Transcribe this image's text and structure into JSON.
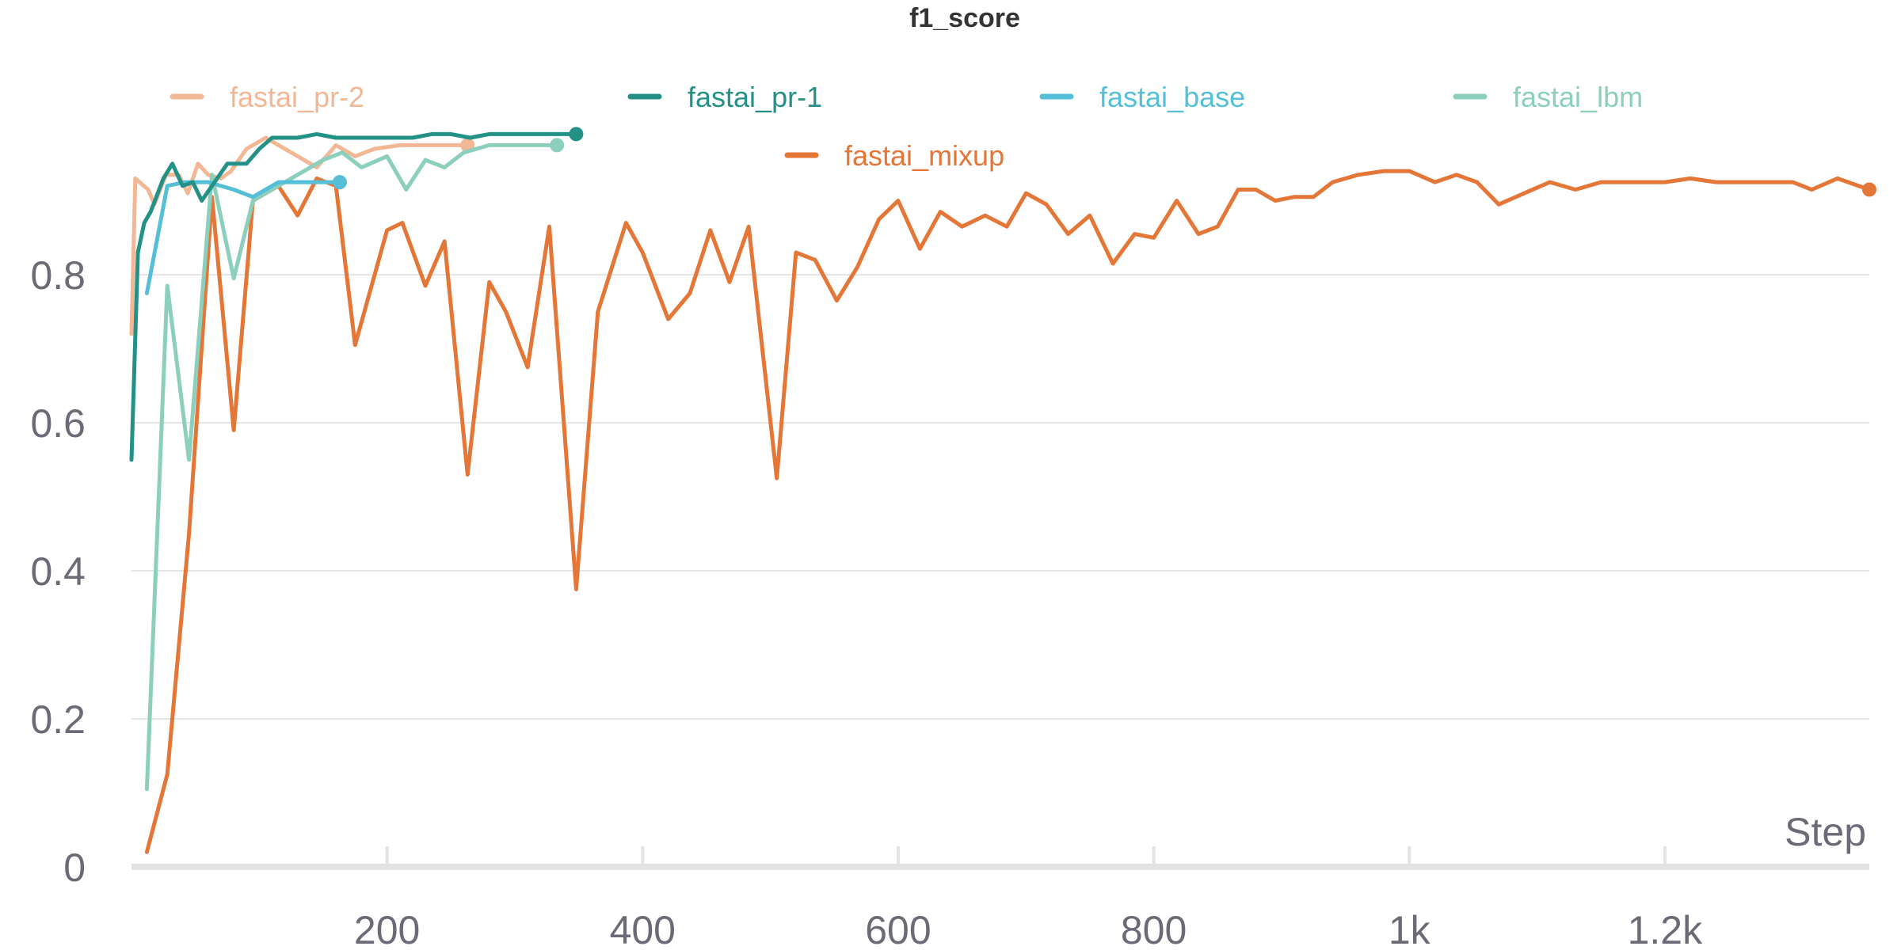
{
  "chart_data": {
    "type": "line",
    "title": "f1_score",
    "xlabel": "Step",
    "ylabel": "",
    "xlim": [
      0,
      1360
    ],
    "ylim": [
      0,
      1.0
    ],
    "xticks": [
      200,
      400,
      600,
      800,
      1000,
      1200
    ],
    "xtick_labels": [
      "200",
      "400",
      "600",
      "800",
      "1k",
      "1.2k"
    ],
    "yticks": [
      0,
      0.2,
      0.4,
      0.6,
      0.8
    ],
    "ytick_labels": [
      "0",
      "0.2",
      "0.4",
      "0.6",
      "0.8"
    ],
    "grid": true,
    "legend_position": "top",
    "series": [
      {
        "name": "fastai_pr-2",
        "color": "#f2b896",
        "x": [
          0,
          3,
          13,
          18,
          27,
          37,
          44,
          52,
          60,
          70,
          78,
          90,
          105,
          125,
          145,
          160,
          175,
          190,
          210,
          230,
          250,
          263
        ],
        "y": [
          0.72,
          0.93,
          0.915,
          0.895,
          0.935,
          0.935,
          0.91,
          0.95,
          0.935,
          0.93,
          0.94,
          0.97,
          0.985,
          0.965,
          0.945,
          0.975,
          0.96,
          0.97,
          0.975,
          0.975,
          0.975,
          0.975
        ]
      },
      {
        "name": "fastai_pr-1",
        "color": "#239186",
        "x": [
          0,
          5,
          10,
          15,
          25,
          32,
          40,
          48,
          55,
          65,
          75,
          90,
          100,
          110,
          130,
          145,
          160,
          190,
          220,
          235,
          250,
          265,
          280,
          300,
          320,
          348
        ],
        "y": [
          0.55,
          0.83,
          0.87,
          0.885,
          0.93,
          0.95,
          0.92,
          0.925,
          0.9,
          0.925,
          0.95,
          0.95,
          0.97,
          0.985,
          0.985,
          0.99,
          0.985,
          0.985,
          0.985,
          0.99,
          0.99,
          0.985,
          0.99,
          0.99,
          0.99,
          0.99
        ]
      },
      {
        "name": "fastai_base",
        "color": "#55bfd8",
        "x": [
          12,
          28,
          42,
          60,
          80,
          95,
          115,
          140,
          163
        ],
        "y": [
          0.775,
          0.92,
          0.925,
          0.925,
          0.915,
          0.905,
          0.925,
          0.925,
          0.925
        ]
      },
      {
        "name": "fastai_lbm",
        "color": "#8ccfbd",
        "x": [
          12,
          28,
          45,
          63,
          80,
          95,
          115,
          135,
          150,
          165,
          180,
          200,
          215,
          230,
          245,
          260,
          280,
          300,
          333
        ],
        "y": [
          0.105,
          0.785,
          0.55,
          0.935,
          0.795,
          0.9,
          0.92,
          0.94,
          0.955,
          0.965,
          0.945,
          0.96,
          0.915,
          0.955,
          0.945,
          0.965,
          0.975,
          0.975,
          0.975
        ]
      },
      {
        "name": "fastai_mixup",
        "color": "#e47637",
        "x": [
          12,
          28,
          45,
          63,
          80,
          95,
          115,
          130,
          145,
          160,
          175,
          200,
          212,
          230,
          245,
          263,
          280,
          293,
          310,
          327,
          348,
          365,
          387,
          400,
          420,
          437,
          453,
          468,
          483,
          505,
          520,
          535,
          552,
          568,
          585,
          600,
          617,
          633,
          650,
          668,
          685,
          700,
          716,
          733,
          750,
          768,
          785,
          800,
          818,
          835,
          850,
          866,
          880,
          895,
          910,
          925,
          940,
          960,
          980,
          1000,
          1020,
          1037,
          1053,
          1070,
          1090,
          1110,
          1130,
          1150,
          1170,
          1200,
          1220,
          1240,
          1260,
          1285,
          1300,
          1315,
          1335,
          1360
        ],
        "y": [
          0.02,
          0.125,
          0.45,
          0.905,
          0.59,
          0.9,
          0.92,
          0.88,
          0.93,
          0.92,
          0.705,
          0.86,
          0.87,
          0.785,
          0.845,
          0.53,
          0.79,
          0.75,
          0.675,
          0.865,
          0.375,
          0.75,
          0.87,
          0.83,
          0.74,
          0.775,
          0.86,
          0.79,
          0.865,
          0.525,
          0.83,
          0.82,
          0.765,
          0.81,
          0.875,
          0.9,
          0.835,
          0.885,
          0.865,
          0.88,
          0.865,
          0.91,
          0.895,
          0.855,
          0.88,
          0.815,
          0.855,
          0.85,
          0.9,
          0.855,
          0.865,
          0.915,
          0.915,
          0.9,
          0.905,
          0.905,
          0.925,
          0.935,
          0.94,
          0.94,
          0.925,
          0.935,
          0.925,
          0.895,
          0.91,
          0.925,
          0.915,
          0.925,
          0.925,
          0.925,
          0.93,
          0.925,
          0.925,
          0.925,
          0.925,
          0.915,
          0.93,
          0.915
        ]
      }
    ]
  }
}
